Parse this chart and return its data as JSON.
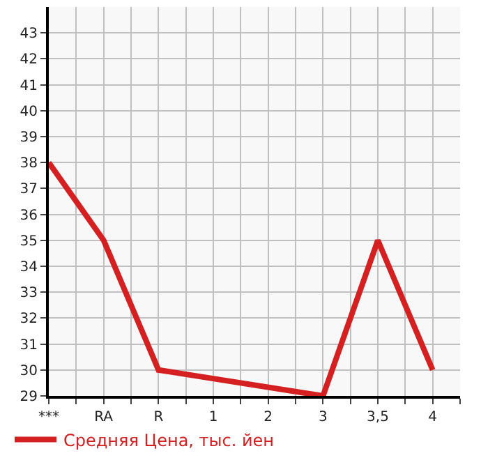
{
  "chart_data": {
    "type": "line",
    "categories": [
      "***",
      "RA",
      "R",
      "1",
      "2",
      "3",
      "3,5",
      "4"
    ],
    "series": [
      {
        "name": "Средняя Цена, тыс. йен",
        "color": "#d42020",
        "values": [
          38,
          35,
          30,
          null,
          null,
          29,
          35,
          30
        ]
      }
    ],
    "ylim": [
      29,
      44
    ],
    "yticks": [
      29,
      30,
      31,
      32,
      33,
      34,
      35,
      36,
      37,
      38,
      39,
      40,
      41,
      42,
      43
    ],
    "grid": true,
    "legend": "bottom left",
    "marker": "none",
    "line_style": "solid"
  }
}
